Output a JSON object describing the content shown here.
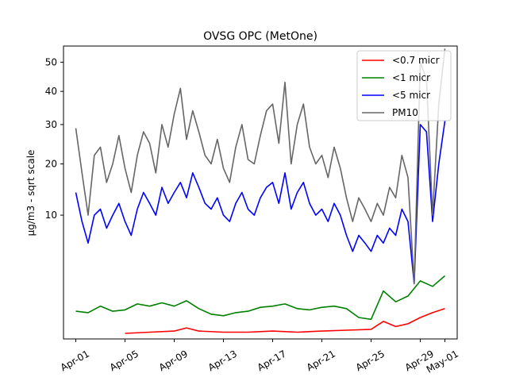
{
  "chart_data": {
    "type": "line",
    "title": "OVSG OPC (MetOne)",
    "xlabel": "",
    "ylabel": "µg/m3 - sqrt scale",
    "y_scale": "sqrt",
    "xlim": [
      "2021-03-31",
      "2021-05-02"
    ],
    "ylim": [
      0,
      56
    ],
    "y_ticks": [
      10,
      20,
      30,
      40,
      50
    ],
    "y_tick_labels": [
      "10",
      "20",
      "30",
      "40",
      "50"
    ],
    "x_ticks": [
      "2021-04-01",
      "2021-04-05",
      "2021-04-09",
      "2021-04-13",
      "2021-04-17",
      "2021-04-21",
      "2021-04-25",
      "2021-04-29",
      "2021-05-01"
    ],
    "x_tick_labels": [
      "Apr-01",
      "Apr-05",
      "Apr-09",
      "Apr-13",
      "Apr-17",
      "Apr-21",
      "Apr-25",
      "Apr-29",
      "May-01"
    ],
    "legend_position": "top-right",
    "grid": false,
    "series": [
      {
        "name": "<0.7 micr",
        "color": "#ff0000",
        "x": [
          "2021-04-05",
          "2021-04-07",
          "2021-04-09",
          "2021-04-10",
          "2021-04-11",
          "2021-04-13",
          "2021-04-15",
          "2021-04-17",
          "2021-04-19",
          "2021-04-21",
          "2021-04-23",
          "2021-04-25",
          "2021-04-26",
          "2021-04-27",
          "2021-04-28",
          "2021-04-29",
          "2021-04-30",
          "2021-05-01"
        ],
        "y": [
          0.02,
          0.03,
          0.04,
          0.08,
          0.04,
          0.03,
          0.03,
          0.04,
          0.03,
          0.04,
          0.05,
          0.06,
          0.2,
          0.1,
          0.15,
          0.3,
          0.45,
          0.6
        ]
      },
      {
        "name": "<1 micr",
        "color": "#008000",
        "x": [
          "2021-04-01",
          "2021-04-02",
          "2021-04-03",
          "2021-04-04",
          "2021-04-05",
          "2021-04-06",
          "2021-04-07",
          "2021-04-08",
          "2021-04-09",
          "2021-04-10",
          "2021-04-11",
          "2021-04-12",
          "2021-04-13",
          "2021-04-14",
          "2021-04-15",
          "2021-04-16",
          "2021-04-17",
          "2021-04-18",
          "2021-04-19",
          "2021-04-20",
          "2021-04-21",
          "2021-04-22",
          "2021-04-23",
          "2021-04-24",
          "2021-04-25",
          "2021-04-26",
          "2021-04-27",
          "2021-04-28",
          "2021-04-29",
          "2021-04-30",
          "2021-05-01"
        ],
        "y": [
          0.5,
          0.45,
          0.7,
          0.5,
          0.55,
          0.8,
          0.7,
          0.85,
          0.7,
          0.95,
          0.6,
          0.4,
          0.35,
          0.45,
          0.5,
          0.65,
          0.7,
          0.8,
          0.6,
          0.55,
          0.65,
          0.7,
          0.6,
          0.3,
          0.25,
          1.5,
          0.9,
          1.2,
          2.2,
          1.8,
          2.6
        ]
      },
      {
        "name": "<5 micr",
        "color": "#0000ff",
        "x": [
          "2021-04-01",
          "2021-04-01T12",
          "2021-04-02",
          "2021-04-02T12",
          "2021-04-03",
          "2021-04-03T12",
          "2021-04-04",
          "2021-04-04T12",
          "2021-04-05",
          "2021-04-05T12",
          "2021-04-06",
          "2021-04-06T12",
          "2021-04-07",
          "2021-04-07T12",
          "2021-04-08",
          "2021-04-08T12",
          "2021-04-09",
          "2021-04-09T12",
          "2021-04-10",
          "2021-04-10T12",
          "2021-04-11",
          "2021-04-11T12",
          "2021-04-12",
          "2021-04-12T12",
          "2021-04-13",
          "2021-04-13T12",
          "2021-04-14",
          "2021-04-14T12",
          "2021-04-15",
          "2021-04-15T12",
          "2021-04-16",
          "2021-04-16T12",
          "2021-04-17",
          "2021-04-17T12",
          "2021-04-18",
          "2021-04-18T12",
          "2021-04-19",
          "2021-04-19T12",
          "2021-04-20",
          "2021-04-20T12",
          "2021-04-21",
          "2021-04-21T12",
          "2021-04-22",
          "2021-04-22T12",
          "2021-04-23",
          "2021-04-23T12",
          "2021-04-24",
          "2021-04-24T12",
          "2021-04-25",
          "2021-04-25T12",
          "2021-04-26",
          "2021-04-26T12",
          "2021-04-27",
          "2021-04-27T12",
          "2021-04-28",
          "2021-04-28T12",
          "2021-04-29",
          "2021-04-29T12",
          "2021-04-30",
          "2021-04-30T12",
          "2021-05-01"
        ],
        "y": [
          14,
          9,
          6,
          10,
          11,
          8,
          10,
          12,
          9,
          7,
          11,
          14,
          12,
          10,
          15,
          12,
          14,
          16,
          13,
          18,
          15,
          12,
          11,
          13,
          10,
          9,
          12,
          14,
          11,
          10,
          13,
          15,
          16,
          12,
          18,
          11,
          14,
          16,
          12,
          10,
          11,
          9,
          12,
          10,
          7,
          5,
          7,
          6,
          5,
          7,
          6,
          8,
          7,
          11,
          9,
          2,
          30,
          28,
          9,
          20,
          31
        ]
      },
      {
        "name": "PM10",
        "color": "#666666",
        "x": [
          "2021-04-01",
          "2021-04-01T12",
          "2021-04-02",
          "2021-04-02T12",
          "2021-04-03",
          "2021-04-03T12",
          "2021-04-04",
          "2021-04-04T12",
          "2021-04-05",
          "2021-04-05T12",
          "2021-04-06",
          "2021-04-06T12",
          "2021-04-07",
          "2021-04-07T12",
          "2021-04-08",
          "2021-04-08T12",
          "2021-04-09",
          "2021-04-09T12",
          "2021-04-10",
          "2021-04-10T12",
          "2021-04-11",
          "2021-04-11T12",
          "2021-04-12",
          "2021-04-12T12",
          "2021-04-13",
          "2021-04-13T12",
          "2021-04-14",
          "2021-04-14T12",
          "2021-04-15",
          "2021-04-15T12",
          "2021-04-16",
          "2021-04-16T12",
          "2021-04-17",
          "2021-04-17T12",
          "2021-04-18",
          "2021-04-18T12",
          "2021-04-19",
          "2021-04-19T12",
          "2021-04-20",
          "2021-04-20T12",
          "2021-04-21",
          "2021-04-21T12",
          "2021-04-22",
          "2021-04-22T12",
          "2021-04-23",
          "2021-04-23T12",
          "2021-04-24",
          "2021-04-24T12",
          "2021-04-25",
          "2021-04-25T12",
          "2021-04-26",
          "2021-04-26T12",
          "2021-04-27",
          "2021-04-27T12",
          "2021-04-28",
          "2021-04-28T12",
          "2021-04-29",
          "2021-04-29T12",
          "2021-04-30",
          "2021-04-30T12",
          "2021-05-01"
        ],
        "y": [
          29,
          18,
          10,
          22,
          24,
          16,
          20,
          27,
          19,
          14,
          22,
          28,
          25,
          18,
          30,
          24,
          33,
          41,
          26,
          34,
          28,
          22,
          20,
          26,
          19,
          16,
          24,
          30,
          21,
          20,
          27,
          34,
          36,
          25,
          43,
          20,
          30,
          36,
          24,
          20,
          22,
          17,
          24,
          19,
          13,
          9,
          13,
          11,
          9,
          12,
          10,
          15,
          13,
          22,
          17,
          2,
          50,
          44,
          10,
          36,
          55
        ]
      }
    ]
  }
}
